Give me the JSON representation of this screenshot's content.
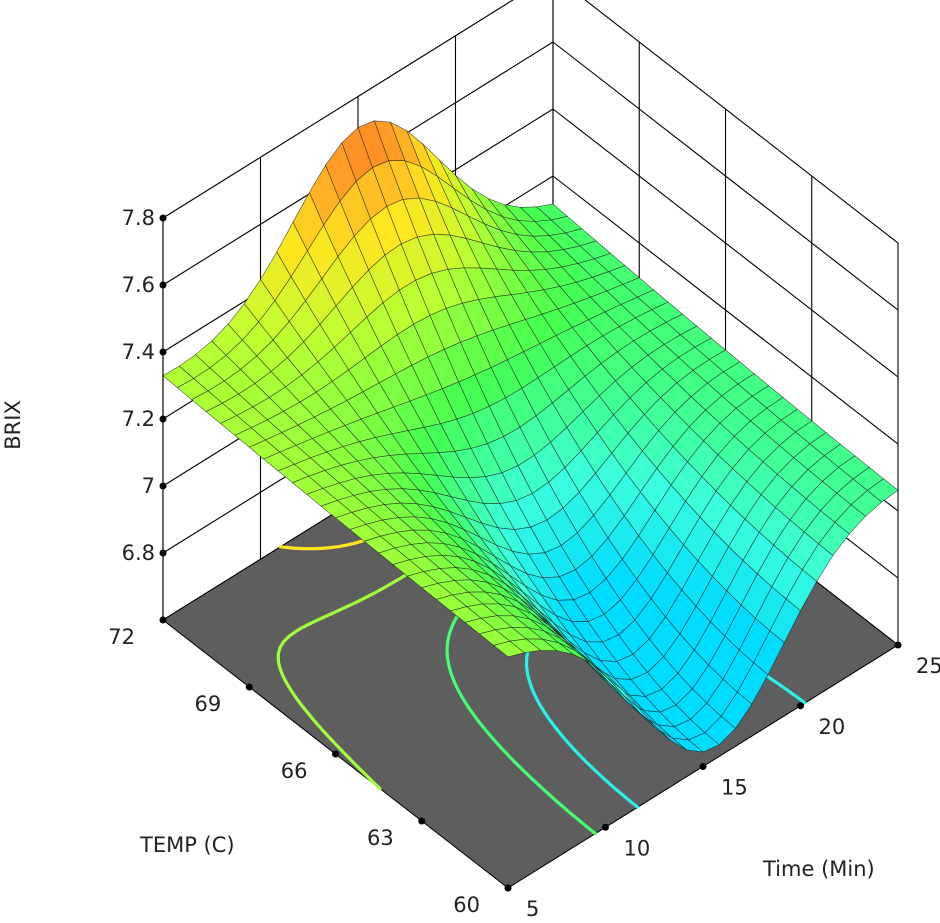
{
  "chart_data": {
    "type": "surface3d",
    "title": "",
    "xlabel": "Time (Min)",
    "ylabel": "TEMP (C)",
    "zlabel": "BRIX",
    "x_ticks": [
      5,
      10,
      15,
      20,
      25
    ],
    "y_ticks": [
      60,
      63,
      66,
      69,
      72
    ],
    "z_ticks": [
      6.8,
      7,
      7.2,
      7.4,
      7.6,
      7.8
    ],
    "x_tick_labels": [
      "5",
      "10",
      "15",
      "20",
      "25"
    ],
    "y_tick_labels": [
      "60",
      "63",
      "66",
      "69",
      "72"
    ],
    "z_tick_labels": [
      "6.8",
      "7",
      "7.2",
      "7.4",
      "7.6",
      "7.8"
    ],
    "xlim": [
      5,
      25
    ],
    "ylim": [
      60,
      72
    ],
    "zlim": [
      6.6,
      7.8
    ],
    "grid": true,
    "contour_floor": true,
    "surface_samples": {
      "description_points": [
        {
          "time": 5,
          "temp": 72,
          "brix": 7.25
        },
        {
          "time": 5,
          "temp": 60,
          "brix": 7.3
        },
        {
          "time": 25,
          "temp": 60,
          "brix": 7.05
        },
        {
          "time": 25,
          "temp": 72,
          "brix": 7.12
        },
        {
          "time": 15,
          "temp": 72,
          "brix": 7.82
        },
        {
          "time": 15,
          "temp": 60,
          "brix": 6.8
        },
        {
          "time": 15,
          "temp": 66,
          "brix": 7.3
        }
      ]
    },
    "colors": {
      "floor": "#5e5e5e",
      "grid": "#000000",
      "colormap": [
        "#00d8ff",
        "#40ffd0",
        "#50ff40",
        "#c0ff30",
        "#ffe020",
        "#ff9020",
        "#ff3010"
      ]
    }
  }
}
